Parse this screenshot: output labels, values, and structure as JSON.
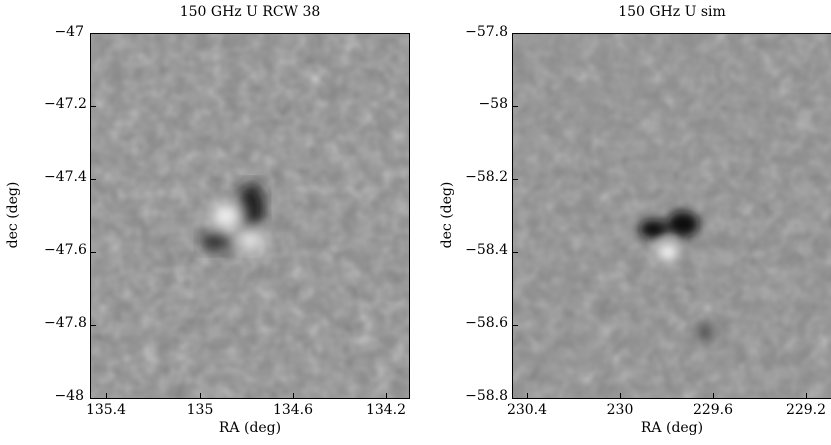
{
  "panels": [
    {
      "title": "150 GHz U RCW 38",
      "xlabel": "RA (deg)",
      "ylabel": "dec (deg)",
      "xticks": [
        "135.4",
        "135",
        "134.6",
        "134.2"
      ],
      "yticks": [
        "−47",
        "−47.2",
        "−47.4",
        "−47.6",
        "−47.8",
        "−48"
      ],
      "features": [
        {
          "kind": "dark",
          "label": "negative-lobe"
        },
        {
          "kind": "light",
          "label": "positive-lobe"
        }
      ]
    },
    {
      "title": "150 GHz U sim",
      "xlabel": "RA (deg)",
      "ylabel": "dec (deg)",
      "xticks": [
        "230.4",
        "230",
        "229.6",
        "229.2"
      ],
      "yticks": [
        "−57.8",
        "−58",
        "−58.2",
        "−58.4",
        "−58.6",
        "−58.8"
      ],
      "features": [
        {
          "kind": "dark",
          "label": "negative-lobe"
        },
        {
          "kind": "light",
          "label": "positive-lobe"
        }
      ]
    }
  ],
  "colormap": {
    "low": "#000000",
    "mid": "#8a8a8a",
    "high": "#ffffff"
  }
}
